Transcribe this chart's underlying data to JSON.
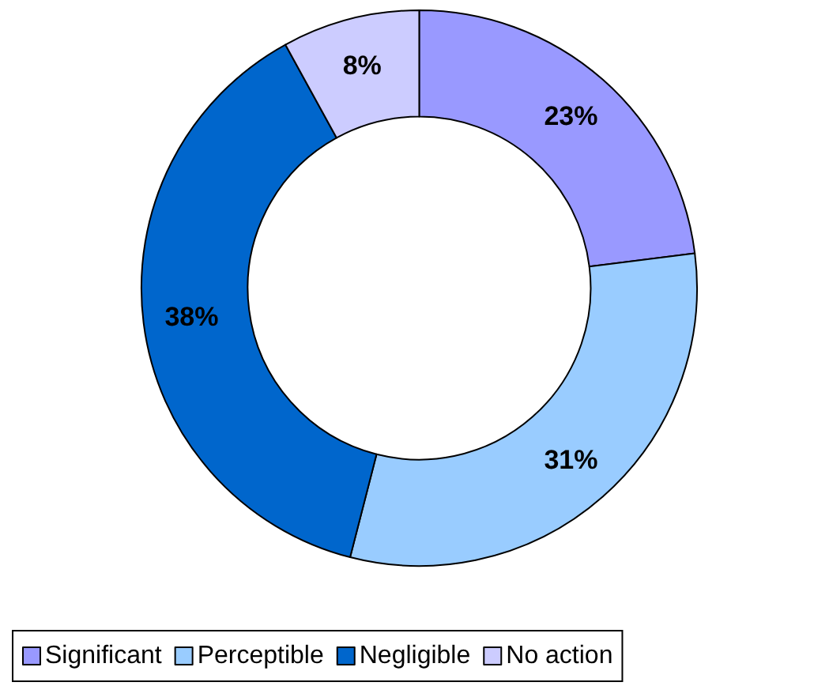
{
  "chart_data": {
    "type": "donut",
    "categories": [
      "Significant",
      "Perceptible",
      "Negligible",
      "No action"
    ],
    "values": [
      23,
      31,
      38,
      8
    ],
    "colors": [
      "#9999ff",
      "#99ccff",
      "#0066cc",
      "#ccccff"
    ],
    "value_labels": [
      "23%",
      "31%",
      "38%",
      "8%"
    ],
    "legend": "bottom"
  }
}
